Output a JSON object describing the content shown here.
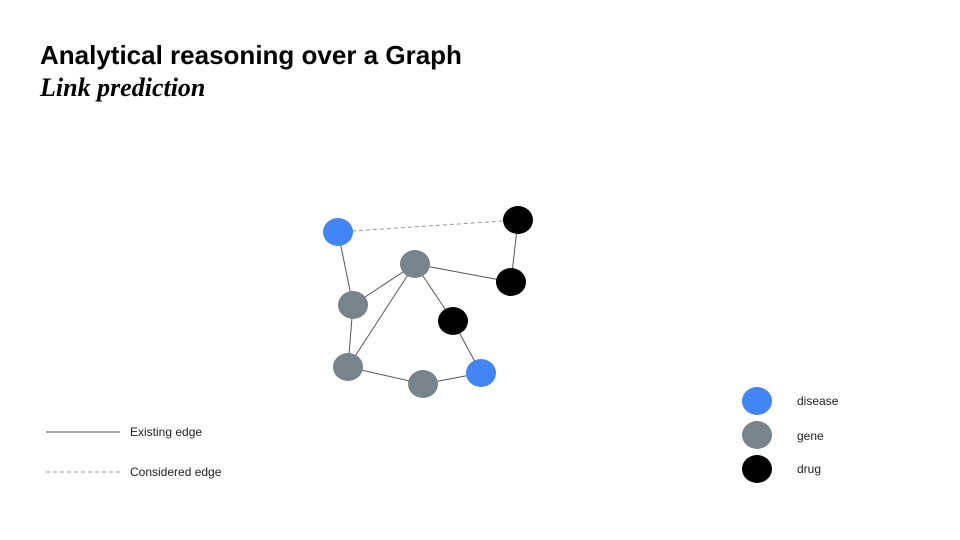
{
  "title": "Analytical reasoning over a Graph",
  "subtitle": "Link prediction",
  "colors": {
    "disease": "#4285f4",
    "gene": "#78848c",
    "drug": "#000000",
    "edge": "#555555",
    "considered_edge": "#999999"
  },
  "edge_legend": [
    {
      "style": "solid",
      "label": "Existing edge"
    },
    {
      "style": "dashed",
      "label": "Considered edge"
    }
  ],
  "node_legend": [
    {
      "type": "disease",
      "label": "disease"
    },
    {
      "type": "gene",
      "label": "gene"
    },
    {
      "type": "drug",
      "label": "drug"
    }
  ],
  "graph": {
    "nodes": [
      {
        "id": "n1",
        "type": "disease"
      },
      {
        "id": "n2",
        "type": "drug"
      },
      {
        "id": "n3",
        "type": "gene"
      },
      {
        "id": "n4",
        "type": "drug"
      },
      {
        "id": "n5",
        "type": "gene"
      },
      {
        "id": "n6",
        "type": "drug"
      },
      {
        "id": "n7",
        "type": "gene"
      },
      {
        "id": "n8",
        "type": "gene"
      },
      {
        "id": "n9",
        "type": "disease"
      }
    ],
    "edges": [
      {
        "from": "n1",
        "to": "n5",
        "style": "solid"
      },
      {
        "from": "n5",
        "to": "n3",
        "style": "solid"
      },
      {
        "from": "n3",
        "to": "n4",
        "style": "solid"
      },
      {
        "from": "n4",
        "to": "n2",
        "style": "solid"
      },
      {
        "from": "n3",
        "to": "n7",
        "style": "solid"
      },
      {
        "from": "n3",
        "to": "n6",
        "style": "solid"
      },
      {
        "from": "n5",
        "to": "n7",
        "style": "solid"
      },
      {
        "from": "n7",
        "to": "n8",
        "style": "solid"
      },
      {
        "from": "n8",
        "to": "n9",
        "style": "solid"
      },
      {
        "from": "n9",
        "to": "n6",
        "style": "solid"
      },
      {
        "from": "n1",
        "to": "n2",
        "style": "dashed"
      }
    ]
  }
}
